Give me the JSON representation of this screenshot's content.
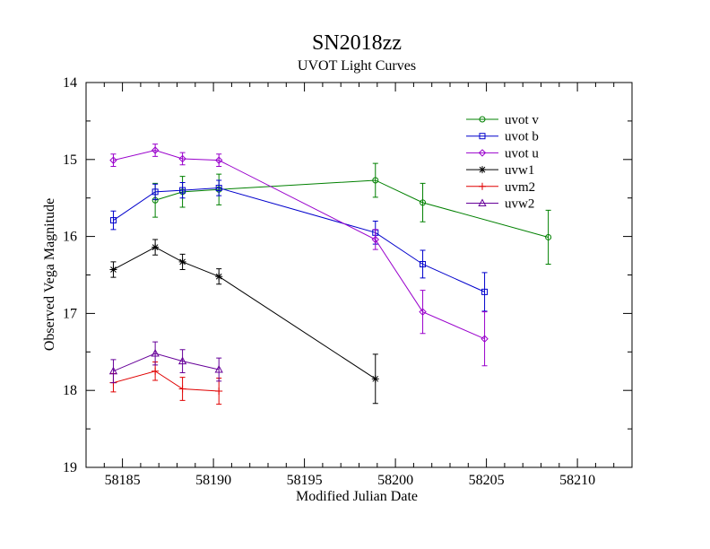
{
  "chart_data": {
    "type": "scatter",
    "title": "SN2018zz",
    "subtitle": "UVOT Light Curves",
    "xlabel": "Modified Julian Date",
    "ylabel": "Observed Vega Magnitude",
    "xlim": [
      58183,
      58213
    ],
    "ylim": [
      19,
      14
    ],
    "y_inverted": true,
    "xticks": [
      58185,
      58190,
      58195,
      58200,
      58205,
      58210
    ],
    "yticks": [
      14,
      15,
      16,
      17,
      18,
      19
    ],
    "grid": false,
    "legend_position": "top-right",
    "series": [
      {
        "name": "uvot v",
        "color": "#008000",
        "marker": "circle",
        "x": [
          58186.8,
          58188.3,
          58190.3,
          58198.9,
          58201.5,
          58208.4
        ],
        "y": [
          15.53,
          15.42,
          15.39,
          15.27,
          15.56,
          16.01
        ],
        "err": [
          0.22,
          0.2,
          0.2,
          0.22,
          0.25,
          0.35
        ]
      },
      {
        "name": "uvot b",
        "color": "#0000cc",
        "marker": "square",
        "x": [
          58184.5,
          58186.8,
          58188.3,
          58190.3,
          58198.9,
          58201.5,
          58204.9
        ],
        "y": [
          15.79,
          15.42,
          15.4,
          15.37,
          15.95,
          16.36,
          16.72
        ],
        "err": [
          0.12,
          0.1,
          0.1,
          0.1,
          0.15,
          0.18,
          0.25
        ]
      },
      {
        "name": "uvot u",
        "color": "#9900cc",
        "marker": "diamond",
        "x": [
          58184.5,
          58186.8,
          58188.3,
          58190.3,
          58198.9,
          58201.5,
          58204.9
        ],
        "y": [
          15.01,
          14.88,
          14.99,
          15.01,
          16.04,
          16.98,
          17.33
        ],
        "err": [
          0.08,
          0.08,
          0.08,
          0.08,
          0.13,
          0.28,
          0.35
        ]
      },
      {
        "name": "uvw1",
        "color": "#000000",
        "marker": "star",
        "x": [
          58184.5,
          58186.8,
          58188.3,
          58190.3,
          58198.9
        ],
        "y": [
          16.43,
          16.14,
          16.33,
          16.52,
          17.85
        ],
        "err": [
          0.1,
          0.1,
          0.1,
          0.1,
          0.32
        ]
      },
      {
        "name": "uvm2",
        "color": "#e00000",
        "marker": "plus",
        "x": [
          58184.5,
          58186.8,
          58188.3,
          58190.3
        ],
        "y": [
          17.9,
          17.75,
          17.98,
          18.01
        ],
        "err": [
          0.12,
          0.12,
          0.15,
          0.17
        ]
      },
      {
        "name": "uvw2",
        "color": "#660099",
        "marker": "triangle",
        "x": [
          58184.5,
          58186.8,
          58188.3,
          58190.3
        ],
        "y": [
          17.75,
          17.52,
          17.62,
          17.73
        ],
        "err": [
          0.15,
          0.15,
          0.15,
          0.15
        ]
      }
    ]
  }
}
